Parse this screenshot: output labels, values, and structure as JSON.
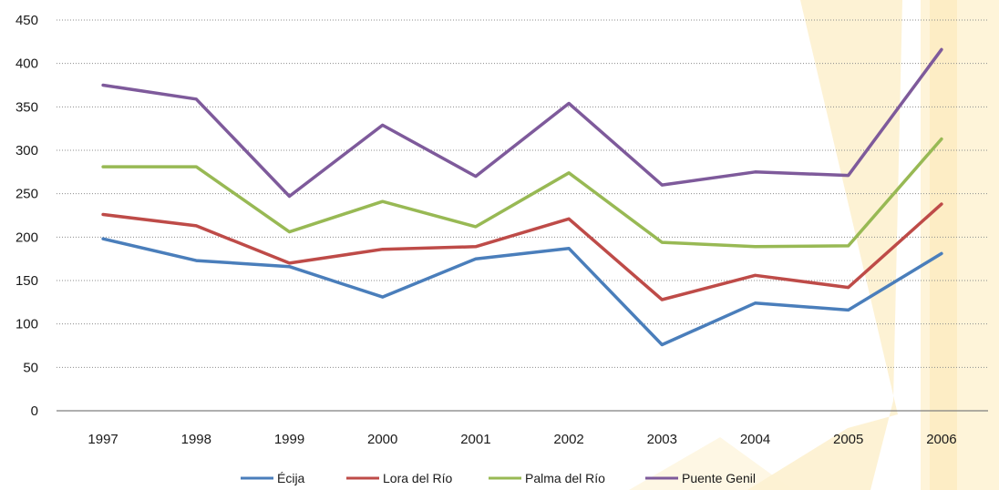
{
  "chart_data": {
    "type": "line",
    "title": "",
    "xlabel": "",
    "ylabel": "",
    "categories": [
      "1997",
      "1998",
      "1999",
      "2000",
      "2001",
      "2002",
      "2003",
      "2004",
      "2005",
      "2006"
    ],
    "ylim": [
      0,
      450
    ],
    "yticks": [
      "0",
      "50",
      "100",
      "150",
      "200",
      "250",
      "300",
      "350",
      "400",
      "450"
    ],
    "grid": "horizontal-dotted",
    "legend_position": "bottom",
    "series": [
      {
        "name": "Écija",
        "color": "#4a7ebb",
        "values": [
          198,
          173,
          166,
          131,
          175,
          187,
          76,
          124,
          116,
          181
        ]
      },
      {
        "name": "Lora del Río",
        "color": "#be4b48",
        "values": [
          226,
          213,
          170,
          186,
          189,
          221,
          128,
          156,
          142,
          238
        ]
      },
      {
        "name": "Palma del Río",
        "color": "#98b954",
        "values": [
          281,
          281,
          206,
          241,
          212,
          274,
          194,
          189,
          190,
          313
        ]
      },
      {
        "name": "Puente Genil",
        "color": "#7e5a9b",
        "values": [
          375,
          359,
          247,
          329,
          270,
          354,
          260,
          275,
          271,
          416
        ]
      }
    ]
  }
}
